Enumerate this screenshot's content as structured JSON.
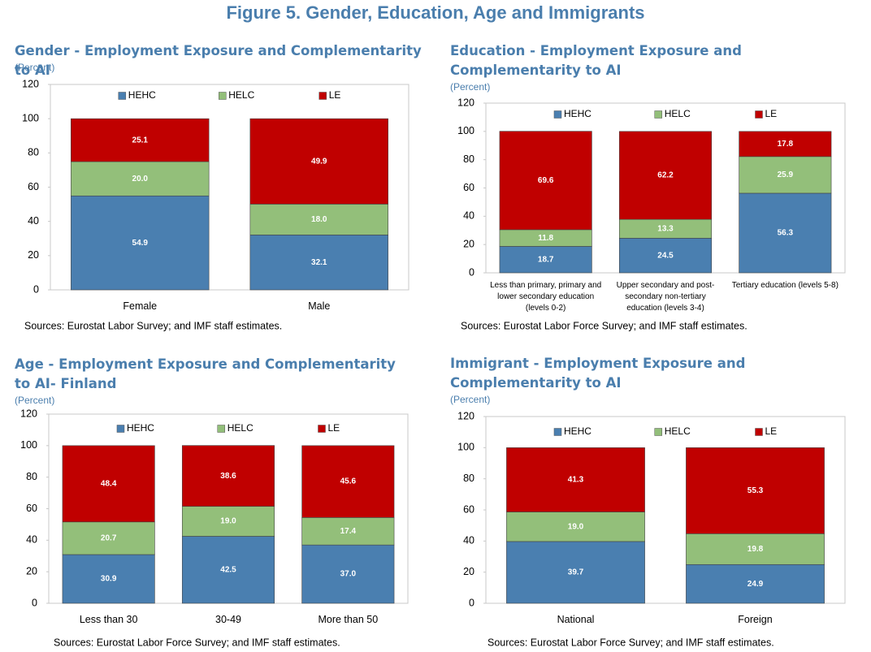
{
  "title": "Figure 5. Gender, Education, Age and Immigrants",
  "chart_data": [
    {
      "type": "bar",
      "stacked": true,
      "title": "Gender - Employment Exposure and Complementarity to AI",
      "subtitle": "(Percent)",
      "categories": [
        "Female",
        "Male"
      ],
      "series": [
        {
          "name": "HEHC",
          "color": "#4a7fb0",
          "values": [
            54.9,
            32.1
          ],
          "value_labels": [
            "54.9",
            "32.1"
          ]
        },
        {
          "name": "HELC",
          "color": "#93bf7a",
          "values": [
            20.0,
            18.0
          ],
          "value_labels": [
            "20.0",
            "18.0"
          ]
        },
        {
          "name": "LE",
          "color": "#c00000",
          "values": [
            25.1,
            49.9
          ],
          "value_labels": [
            "25.1",
            "49.9"
          ]
        }
      ],
      "ylim": [
        0,
        120
      ],
      "yticks": [
        0,
        20,
        40,
        60,
        80,
        100,
        120
      ],
      "legend": "top",
      "note": "Sources: Eurostat Labor Survey; and IMF staff estimates."
    },
    {
      "type": "bar",
      "stacked": true,
      "title": "Education - Employment Exposure and Complementarity to AI",
      "subtitle": "(Percent)",
      "categories": [
        "Less than primary, primary and lower secondary education (levels 0-2)",
        "Upper secondary and post-secondary non-tertiary education (levels 3-4)",
        "Tertiary education (levels 5-8)"
      ],
      "series": [
        {
          "name": "HEHC",
          "color": "#4a7fb0",
          "values": [
            18.7,
            24.5,
            56.3
          ],
          "value_labels": [
            "18.7",
            "24.5",
            "56.3"
          ]
        },
        {
          "name": "HELC",
          "color": "#93bf7a",
          "values": [
            11.8,
            13.3,
            25.9
          ],
          "value_labels": [
            "11.8",
            "13.3",
            "25.9"
          ]
        },
        {
          "name": "LE",
          "color": "#c00000",
          "values": [
            69.6,
            62.2,
            17.8
          ],
          "value_labels": [
            "69.6",
            "62.2",
            "17.8"
          ]
        }
      ],
      "ylim": [
        0,
        120
      ],
      "yticks": [
        0,
        20,
        40,
        60,
        80,
        100,
        120
      ],
      "legend": "top",
      "note": "Sources: Eurostat Labor Force Survey; and IMF staff estimates."
    },
    {
      "type": "bar",
      "stacked": true,
      "title": "Age - Employment Exposure and Complementarity to AI- Finland",
      "subtitle": "(Percent)",
      "categories": [
        "Less than 30",
        "30-49",
        "More than 50"
      ],
      "series": [
        {
          "name": "HEHC",
          "color": "#4a7fb0",
          "values": [
            30.9,
            42.5,
            37.0
          ],
          "value_labels": [
            "30.9",
            "42.5",
            "37.0"
          ]
        },
        {
          "name": "HELC",
          "color": "#93bf7a",
          "values": [
            20.7,
            19.0,
            17.4
          ],
          "value_labels": [
            "20.7",
            "19.0",
            "17.4"
          ]
        },
        {
          "name": "LE",
          "color": "#c00000",
          "values": [
            48.4,
            38.6,
            45.6
          ],
          "value_labels": [
            "48.4",
            "38.6",
            "45.6"
          ]
        }
      ],
      "ylim": [
        0,
        120
      ],
      "yticks": [
        0,
        20,
        40,
        60,
        80,
        100,
        120
      ],
      "legend": "top",
      "note": "Sources: Eurostat Labor Force Survey; and IMF staff estimates."
    },
    {
      "type": "bar",
      "stacked": true,
      "title": "Immigrant - Employment Exposure and Complementarity to AI",
      "subtitle": "(Percent)",
      "categories": [
        "National",
        "Foreign"
      ],
      "series": [
        {
          "name": "HEHC",
          "color": "#4a7fb0",
          "values": [
            39.7,
            24.9
          ],
          "value_labels": [
            "39.7",
            "24.9"
          ]
        },
        {
          "name": "HELC",
          "color": "#93bf7a",
          "values": [
            19.0,
            19.8
          ],
          "value_labels": [
            "19.0",
            "19.8"
          ]
        },
        {
          "name": "LE",
          "color": "#c00000",
          "values": [
            41.3,
            55.3
          ],
          "value_labels": [
            "41.3",
            "55.3"
          ]
        }
      ],
      "ylim": [
        0,
        120
      ],
      "yticks": [
        0,
        20,
        40,
        60,
        80,
        100,
        120
      ],
      "legend": "top",
      "note": "Sources: Eurostat Labor Force Survey; and IMF staff estimates."
    }
  ]
}
